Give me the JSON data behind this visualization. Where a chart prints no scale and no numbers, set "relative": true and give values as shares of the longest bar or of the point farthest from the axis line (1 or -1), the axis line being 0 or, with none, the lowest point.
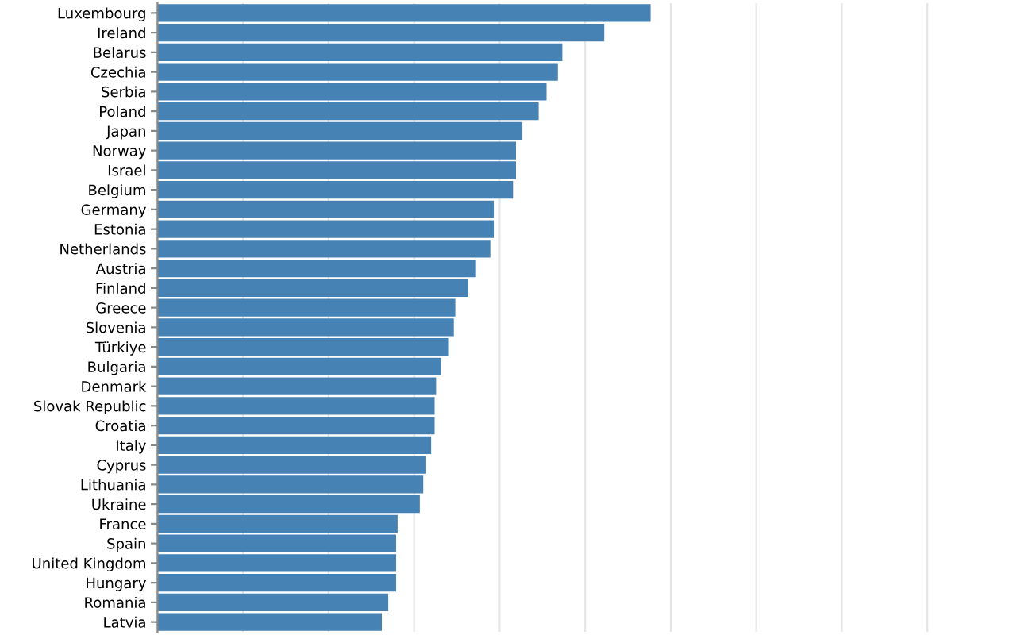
{
  "chart_data": {
    "type": "bar",
    "orientation": "horizontal",
    "relative": true,
    "color": "#4682b4",
    "grid": "x",
    "categories": [
      "Luxembourg",
      "Ireland",
      "Belarus",
      "Czechia",
      "Serbia",
      "Poland",
      "Japan",
      "Norway",
      "Israel",
      "Belgium",
      "Germany",
      "Estonia",
      "Netherlands",
      "Austria",
      "Finland",
      "Greece",
      "Slovenia",
      "Türkiye",
      "Bulgaria",
      "Denmark",
      "Slovak Republic",
      "Croatia",
      "Italy",
      "Cyprus",
      "Lithuania",
      "Ukraine",
      "France",
      "Spain",
      "United Kingdom",
      "Hungary",
      "Romania",
      "Latvia"
    ],
    "values": [
      1,
      0.906,
      0.821,
      0.812,
      0.789,
      0.773,
      0.74,
      0.727,
      0.727,
      0.721,
      0.682,
      0.682,
      0.675,
      0.646,
      0.63,
      0.604,
      0.601,
      0.591,
      0.575,
      0.565,
      0.562,
      0.562,
      0.555,
      0.545,
      0.539,
      0.532,
      0.487,
      0.484,
      0.484,
      0.484,
      0.468,
      0.455
    ]
  }
}
